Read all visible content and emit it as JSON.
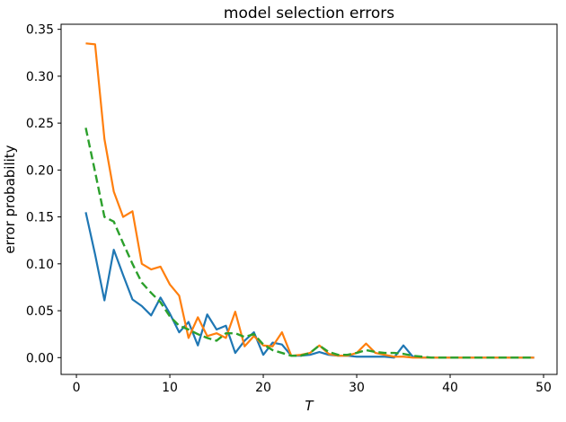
{
  "figure": {
    "title": "model selection errors",
    "xlabel": "T",
    "ylabel": "error probability"
  },
  "chart_data": {
    "type": "line",
    "title": "model selection errors",
    "xlabel": "T",
    "ylabel": "error probability",
    "grid": false,
    "legend": "none",
    "xlim": [
      -1.64,
      51.44
    ],
    "ylim": [
      -0.0179,
      0.3554
    ],
    "x_ticks": [
      0,
      10,
      20,
      30,
      40,
      50
    ],
    "x_tick_labels": [
      "0",
      "10",
      "20",
      "30",
      "40",
      "50"
    ],
    "y_ticks": [
      0.0,
      0.05,
      0.1,
      0.15,
      0.2,
      0.25,
      0.3,
      0.35
    ],
    "y_tick_labels": [
      "0.00",
      "0.05",
      "0.10",
      "0.15",
      "0.20",
      "0.25",
      "0.30",
      "0.35"
    ],
    "x": [
      1,
      2,
      3,
      4,
      5,
      6,
      7,
      8,
      9,
      10,
      11,
      12,
      13,
      14,
      15,
      16,
      17,
      18,
      19,
      20,
      21,
      22,
      23,
      24,
      25,
      26,
      27,
      28,
      29,
      30,
      31,
      32,
      33,
      34,
      35,
      36,
      37,
      38,
      39,
      40,
      41,
      42,
      43,
      44,
      45,
      46,
      47,
      48,
      49
    ],
    "series": [
      {
        "name": "series-1-blue",
        "color": "#1f77b4",
        "style": "solid",
        "values": [
          0.155,
          0.11,
          0.061,
          0.115,
          0.088,
          0.062,
          0.055,
          0.045,
          0.064,
          0.047,
          0.027,
          0.038,
          0.013,
          0.046,
          0.03,
          0.034,
          0.005,
          0.018,
          0.027,
          0.003,
          0.016,
          0.014,
          0.002,
          0.002,
          0.003,
          0.006,
          0.003,
          0.002,
          0.002,
          0.001,
          0.001,
          0.001,
          0.001,
          0.0,
          0.013,
          0.001,
          0.0,
          0.0,
          0.0,
          0.0,
          0.0,
          0.0,
          0.0,
          0.0,
          0.0,
          0.0,
          0.0,
          0.0,
          0.0
        ]
      },
      {
        "name": "series-2-orange",
        "color": "#ff7f0e",
        "style": "solid",
        "values": [
          0.335,
          0.334,
          0.233,
          0.177,
          0.15,
          0.156,
          0.1,
          0.094,
          0.097,
          0.078,
          0.066,
          0.021,
          0.043,
          0.023,
          0.026,
          0.021,
          0.049,
          0.012,
          0.023,
          0.013,
          0.012,
          0.027,
          0.002,
          0.003,
          0.005,
          0.013,
          0.004,
          0.002,
          0.002,
          0.005,
          0.015,
          0.005,
          0.003,
          0.001,
          0.001,
          0.0,
          0.0,
          0.0,
          0.0,
          0.0,
          0.0,
          0.0,
          0.0,
          0.0,
          0.0,
          0.0,
          0.0,
          0.0,
          0.0
        ]
      },
      {
        "name": "series-3-green-dashed",
        "color": "#2ca02c",
        "style": "dashed",
        "values": [
          0.245,
          0.198,
          0.15,
          0.145,
          0.122,
          0.1,
          0.08,
          0.069,
          0.059,
          0.044,
          0.034,
          0.03,
          0.025,
          0.021,
          0.018,
          0.026,
          0.026,
          0.022,
          0.025,
          0.014,
          0.008,
          0.005,
          0.002,
          0.002,
          0.005,
          0.013,
          0.006,
          0.003,
          0.003,
          0.005,
          0.008,
          0.006,
          0.005,
          0.005,
          0.004,
          0.002,
          0.001,
          0.0,
          0.0,
          0.0,
          0.0,
          0.0,
          0.0,
          0.0,
          0.0,
          0.0,
          0.0,
          0.0,
          0.0
        ]
      }
    ]
  }
}
